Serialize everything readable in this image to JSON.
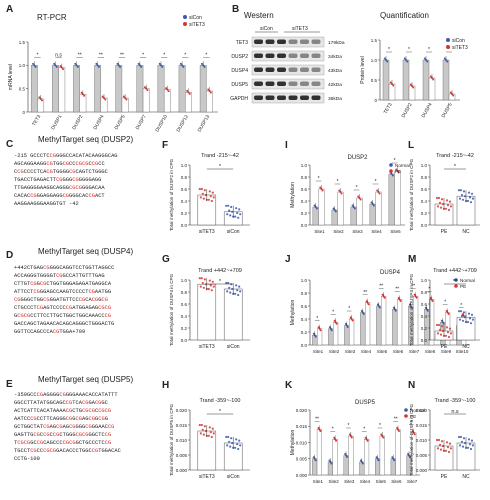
{
  "panels": {
    "A": {
      "letter": "A",
      "title": "RT-PCR",
      "ylabel": "mRNA level",
      "legend": [
        "siCon",
        "siTET3"
      ],
      "ns": "n.s",
      "categories": [
        "TET3",
        "DUSP1",
        "DUSP2",
        "DUSP4",
        "DUSP5",
        "DUSP7",
        "DUSP10",
        "DUSP12",
        "DUSP13"
      ],
      "sicon": [
        1.0,
        1.0,
        1.0,
        1.0,
        1.0,
        1.0,
        1.0,
        1.0,
        1.0
      ],
      "situt3": [
        0.28,
        0.95,
        0.38,
        0.3,
        0.3,
        0.5,
        0.48,
        0.42,
        0.45
      ],
      "stars": [
        "*",
        "n.s",
        "**",
        "**",
        "**",
        "*",
        "*",
        "*",
        "*"
      ],
      "ylim": [
        0,
        1.5
      ],
      "yticks": [
        "0",
        "0.5",
        "1.0",
        "1.5"
      ]
    },
    "B": {
      "letter": "B",
      "title_western": "Western",
      "title_quant": "Quantification",
      "lane_labels": [
        "siCon",
        "siTET3"
      ],
      "proteins": [
        "TET3",
        "DUSP2",
        "DUSP4",
        "DUSP5",
        "GAPDH"
      ],
      "sizes": [
        "179kDa",
        "34kDa",
        "43kDa",
        "42kDa",
        "36kDa"
      ],
      "quant": {
        "ylabel": "Protein level",
        "legend": [
          "siCon",
          "siTET3"
        ],
        "categories": [
          "TET3",
          "DUSP2",
          "DUSP4",
          "DUSP5"
        ],
        "sicon": [
          1.0,
          1.0,
          1.0,
          1.0
        ],
        "situt3": [
          0.4,
          0.35,
          0.55,
          0.15
        ],
        "stars": [
          "*",
          "*",
          "*",
          "*"
        ],
        "ylim": [
          0,
          1.5
        ],
        "yticks": [
          "0",
          "0.5",
          "1.0",
          "1.5"
        ]
      }
    },
    "C": {
      "letter": "C",
      "title": "MethylTarget seq (DUSP2)",
      "seq": "-215 GCCCTCCGGGGCCACATACAAGGGCAG\nAGCAGGAAGGCGTGGCGCCCGCGCCGCC\nCCGCCCCTCACGTGGGGCGCAGTCTGGGC\nTGACCTGAGACTTCGGGGCGGGGGAGG\nTTGAGGGGAAGGCAGGGCGCGGGGACAA\nCACACCGGGAGGAGGCGGGGCACCGACT\nAAGGAAGGGAAGGTGT -42"
    },
    "D": {
      "letter": "D",
      "title": "MethylTarget seq (DUSP4)",
      "seq": "+442CTGAGCGGGGCAGGTCCTGGTTAGGCC\nACCAGGGTGGGGTCGGCCATTGTTTGAG\nCTTGTCGGCGCTGGTGGGAGAGATGAGGCA\nATTCCTCGGGAGCCAAGTCCCCTCGAATGG\nCGGGGCTGGCGGGATGTTCCCGCACGGCG\nCTGCCCTCGAGTCCCCCGATGGAGAGCGCG\nGCGCGCCTTCCTTGCTGGCTGGCAAACCCG\nGACCAGCTAGAACACAGCAGGGCTGGGACTG\nGGTTCCAGCCCACGTGGA+709"
    },
    "E": {
      "letter": "E",
      "title": "MethylTarget seq (DUSP5)",
      "seq": "-359GCCCGAGGGGCGGGGAAACACCATATTT\nGGCCTTATATGGCAGCCGTCACGGACGGC\nACTCATTCACATAAAACGCTGCGCGCCGCG\nAATCCCGCCTTCAGGGCGGCGAGCGGCGG\nGCTGGCTATCGAGCGAGCGGGGCGGGAACCG\nGAGTTGCGCCGCCGCTGGGCGCGGGCTCCG\nTCGCGGCCGCAGCCCCGCGGCTGCCCTCCG\nTGCCTCGCCCGCGGACACCCTGGCCGTGGACAC\nCCTG-100"
    },
    "F": {
      "letter": "F",
      "range": "Trand -215~-42",
      "ylabel": "Total methylation of DUSP2 in CPG",
      "categories": [
        "siTET3",
        "siCon"
      ],
      "values": [
        0.5,
        0.22
      ],
      "ylim": [
        0,
        1.0
      ],
      "yticks": [
        "0.0",
        "0.2",
        "0.4",
        "0.6",
        "0.8",
        "1.0"
      ],
      "star": "*"
    },
    "G": {
      "letter": "G",
      "range": "Trand +442~+709",
      "ylabel": "Total methylation of DUSP4 in CPG",
      "categories": [
        "siTET3",
        "siCon"
      ],
      "values": [
        0.93,
        0.85
      ],
      "ylim": [
        0,
        1.0
      ],
      "yticks": [
        "0.0",
        "0.2",
        "0.4",
        "0.6",
        "0.8",
        "1.0"
      ],
      "star": "*"
    },
    "H": {
      "letter": "H",
      "range": "Trand -359~-100",
      "ylabel": "Total methylation of DUSP5 in CPG",
      "categories": [
        "siTET3",
        "siCon"
      ],
      "values": [
        0.013,
        0.009
      ],
      "ylim": [
        0,
        0.02
      ],
      "yticks": [
        "0.000",
        "0.005",
        "0.010",
        "0.015",
        "0.020"
      ],
      "star": "*"
    },
    "I": {
      "letter": "I",
      "title": "DUSP2",
      "ylabel": "Methylation",
      "legend": [
        "Normal",
        "PE"
      ],
      "categories": [
        "Site1",
        "Site2",
        "Site3",
        "Site4",
        "Site5"
      ],
      "normal": [
        0.3,
        0.25,
        0.3,
        0.35,
        0.85
      ],
      "pe": [
        0.6,
        0.55,
        0.45,
        0.55,
        0.9
      ],
      "stars": [
        "*",
        "*",
        "*",
        "*",
        "*"
      ],
      "ylim": [
        0,
        1.0
      ],
      "yticks": [
        "0.0",
        "0.2",
        "0.4",
        "0.6",
        "0.8",
        "1.0"
      ]
    },
    "J": {
      "letter": "J",
      "title": "DUSP4",
      "ylabel": "Methylation",
      "legend": [
        "Normal",
        "PE"
      ],
      "categories": [
        "Site1",
        "Site2",
        "Site3",
        "Site4",
        "Site5",
        "Site6",
        "Site7",
        "Site8",
        "Site9",
        "Site10"
      ],
      "normal": [
        0.15,
        0.25,
        0.3,
        0.5,
        0.6,
        0.55,
        0.6,
        0.55,
        0.35,
        0.3
      ],
      "pe": [
        0.25,
        0.35,
        0.4,
        0.65,
        0.75,
        0.7,
        0.75,
        0.7,
        0.5,
        0.45
      ],
      "stars": [
        "*",
        "*",
        "*",
        "**",
        "**",
        "**",
        "**",
        "*",
        "*",
        "*"
      ],
      "ylim": [
        0,
        1.0
      ],
      "yticks": [
        "0.0",
        "0.2",
        "0.4",
        "0.6",
        "0.8",
        "1.0"
      ]
    },
    "K": {
      "letter": "K",
      "title": "DUSP5",
      "ylabel": "Methylation",
      "legend": [
        "Normal",
        "PE"
      ],
      "categories": [
        "Site1",
        "Site2",
        "Site3",
        "Site4",
        "Site5",
        "Site6",
        "Site7"
      ],
      "normal": [
        0.005,
        0.004,
        0.006,
        0.004,
        0.005,
        0.005,
        0.006
      ],
      "pe": [
        0.014,
        0.011,
        0.012,
        0.011,
        0.012,
        0.014,
        0.013
      ],
      "stars": [
        "**",
        "*",
        "*",
        "*",
        "*",
        "**",
        "*"
      ],
      "ylim": [
        0,
        0.02
      ],
      "yticks": [
        "0.000",
        "0.005",
        "0.010",
        "0.015",
        "0.020"
      ]
    },
    "L": {
      "letter": "L",
      "range": "Trand -215~-42",
      "ylabel": "Total methylation of DUSP2 in CPG",
      "categories": [
        "PE",
        "NC"
      ],
      "values": [
        0.35,
        0.48
      ],
      "ylim": [
        0,
        1.0
      ],
      "yticks": [
        "0.0",
        "0.2",
        "0.4",
        "0.6",
        "0.8",
        "1.0"
      ],
      "star": "*"
    },
    "M": {
      "letter": "M",
      "range": "Trand +442~+709",
      "ylabel": "Total methylation of DUSP4 in CPG",
      "categories": [
        "PE",
        "NC"
      ],
      "values": [
        0.15,
        0.38
      ],
      "ylim": [
        0,
        1.0
      ],
      "yticks": [
        "0.0",
        "0.2",
        "0.4",
        "0.6",
        "0.8",
        "1.0"
      ],
      "star": "**"
    },
    "N": {
      "letter": "N",
      "range": "Trand -359~-100",
      "ylabel": "Total methylation of DUSP5 in CPG",
      "categories": [
        "PE",
        "NC"
      ],
      "values": [
        0.008,
        0.009
      ],
      "ylim": [
        0,
        0.02
      ],
      "yticks": [
        "0.000",
        "0.005",
        "0.010",
        "0.015",
        "0.020"
      ],
      "star": "n.s"
    }
  },
  "colors": {
    "sicon": "#3e5aa8",
    "situt3": "#d93434",
    "bar": "#c8c8c8",
    "normal": "#3e5aa8",
    "pe": "#d93434"
  }
}
